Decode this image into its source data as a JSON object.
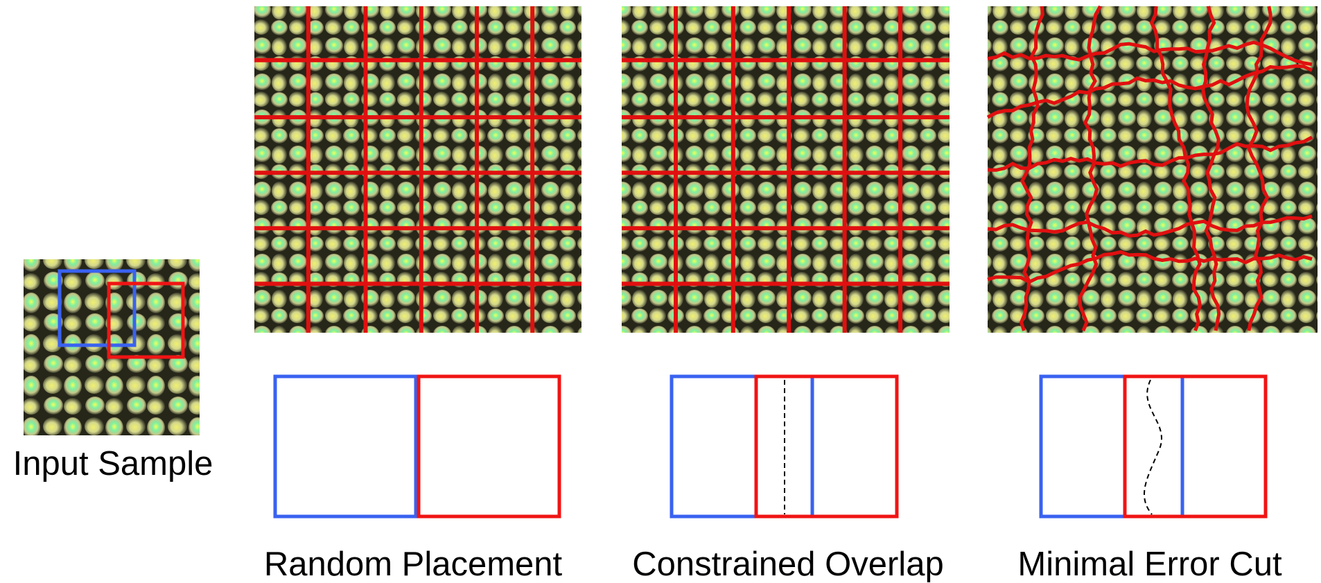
{
  "input_label": "Input Sample",
  "panels": [
    {
      "label": "Random Placement"
    },
    {
      "label": "Constrained Overlap"
    },
    {
      "label": "Minimal Error Cut"
    }
  ]
}
